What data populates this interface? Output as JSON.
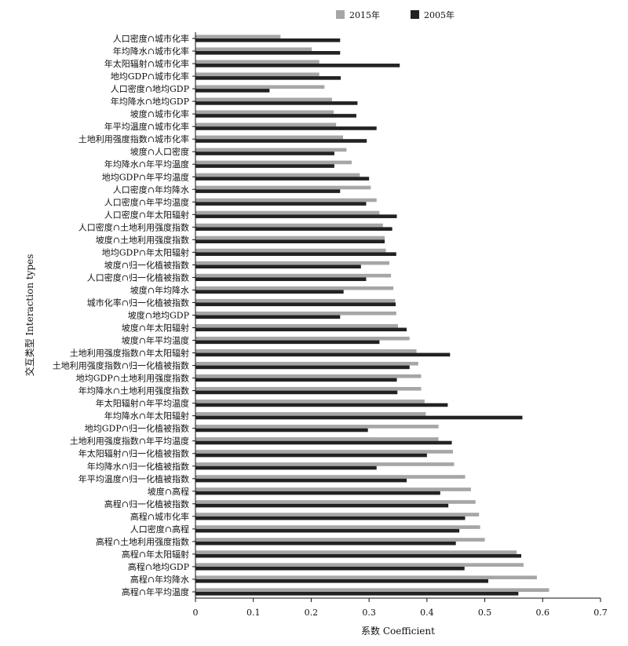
{
  "chart_data": {
    "type": "bar",
    "orientation": "horizontal",
    "xlabel": "系数  Coefficient",
    "ylabel": "交互类型  Interaction types",
    "xlim": [
      0,
      0.7
    ],
    "xticks": [
      "0",
      "0.1",
      "0.2",
      "0.3",
      "0.4",
      "0.5",
      "0.6",
      "0.7"
    ],
    "grid": false,
    "legend": "top-right",
    "categories": [
      "人口密度∩城市化率",
      "年均降水∩城市化率",
      "年太阳辐射∩城市化率",
      "地均GDP∩城市化率",
      "人口密度∩地均GDP",
      "年均降水∩地均GDP",
      "坡度∩城市化率",
      "年平均温度∩城市化率",
      "土地利用强度指数∩城市化率",
      "坡度∩人口密度",
      "年均降水∩年平均温度",
      "地均GDP∩年平均温度",
      "人口密度∩年均降水",
      "人口密度∩年平均温度",
      "人口密度∩年太阳辐射",
      "人口密度∩土地利用强度指数",
      "坡度∩土地利用强度指数",
      "地均GDP∩年太阳辐射",
      "坡度∩归一化植被指数",
      "人口密度∩归一化植被指数",
      "坡度∩年均降水",
      "城市化率∩归一化植被指数",
      "坡度∩地均GDP",
      "坡度∩年太阳辐射",
      "坡度∩年平均温度",
      "土地利用强度指数∩年太阳辐射",
      "土地利用强度指数∩归一化植被指数",
      "地均GDP∩土地利用强度指数",
      "年均降水∩土地利用强度指数",
      "年太阳辐射∩年平均温度",
      "年均降水∩年太阳辐射",
      "地均GDP∩归一化植被指数",
      "土地利用强度指数∩年平均温度",
      "年太阳辐射∩归一化植被指数",
      "年均降水∩归一化植被指数",
      "年平均温度∩归一化植被指数",
      "坡度∩高程",
      "高程∩归一化植被指数",
      "高程∩城市化率",
      "人口密度∩高程",
      "高程∩土地利用强度指数",
      "高程∩年太阳辐射",
      "高程∩地均GDP",
      "高程∩年均降水",
      "高程∩年平均温度"
    ],
    "series": [
      {
        "name": "2015年",
        "color": "#a6a6a6",
        "values": [
          0.147,
          0.201,
          0.214,
          0.214,
          0.223,
          0.236,
          0.239,
          0.243,
          0.255,
          0.261,
          0.27,
          0.284,
          0.303,
          0.313,
          0.318,
          0.324,
          0.327,
          0.329,
          0.335,
          0.338,
          0.342,
          0.345,
          0.347,
          0.35,
          0.37,
          0.382,
          0.385,
          0.39,
          0.39,
          0.396,
          0.398,
          0.42,
          0.42,
          0.445,
          0.447,
          0.466,
          0.476,
          0.484,
          0.49,
          0.492,
          0.5,
          0.555,
          0.567,
          0.59,
          0.611
        ]
      },
      {
        "name": "2005年",
        "color": "#222222",
        "values": [
          0.25,
          0.25,
          0.353,
          0.251,
          0.128,
          0.28,
          0.278,
          0.313,
          0.296,
          0.24,
          0.24,
          0.3,
          0.25,
          0.295,
          0.348,
          0.34,
          0.327,
          0.347,
          0.286,
          0.295,
          0.256,
          0.346,
          0.25,
          0.365,
          0.318,
          0.44,
          0.37,
          0.348,
          0.349,
          0.436,
          0.565,
          0.298,
          0.443,
          0.4,
          0.313,
          0.365,
          0.423,
          0.437,
          0.466,
          0.456,
          0.45,
          0.563,
          0.465,
          0.506,
          0.558
        ]
      }
    ]
  }
}
